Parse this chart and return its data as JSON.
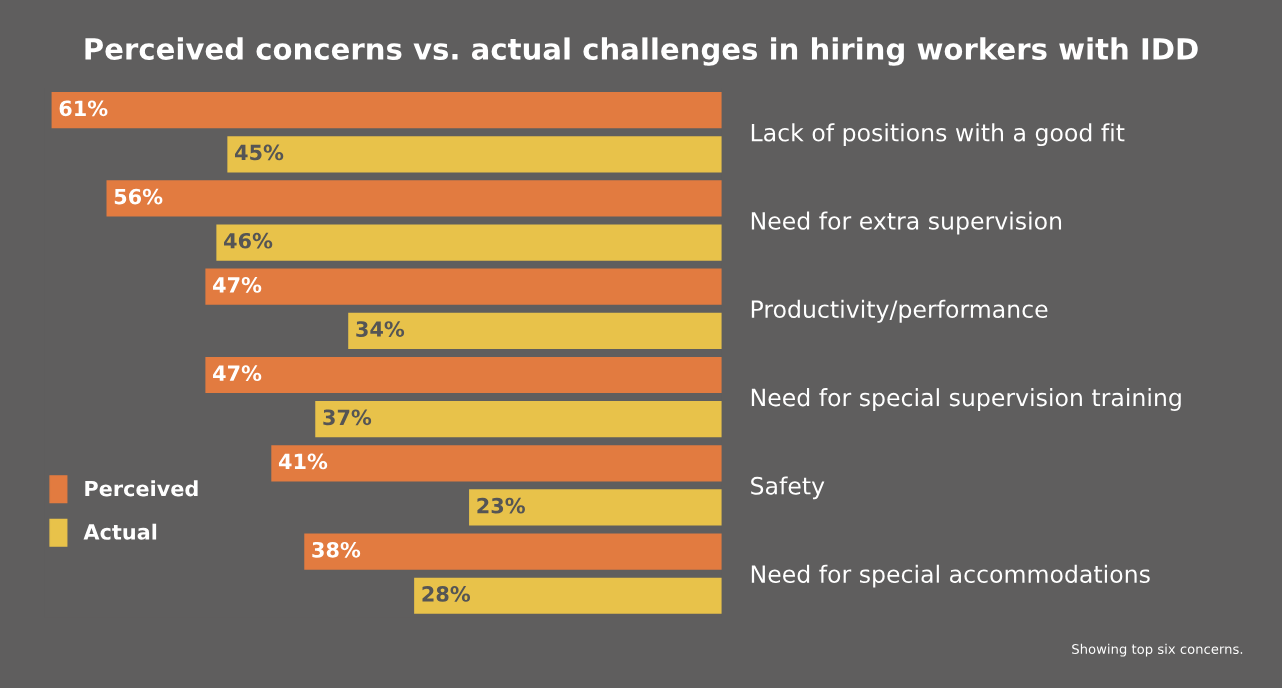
{
  "chart_data": {
    "type": "bar",
    "orientation": "horizontal",
    "title": "Perceived concerns vs. actual challenges in hiring workers with IDD",
    "categories": [
      "Lack of positions with a good fit",
      "Need for extra supervision",
      "Productivity/performance",
      "Need for special supervision training",
      "Safety",
      "Need for special accommodations"
    ],
    "series": [
      {
        "name": "Perceived",
        "color": "#e27b40",
        "values": [
          61,
          56,
          47,
          47,
          41,
          38
        ],
        "value_labels": [
          "61%",
          "56%",
          "47%",
          "47%",
          "41%",
          "38%"
        ]
      },
      {
        "name": "Actual",
        "color": "#e8c24a",
        "values": [
          45,
          46,
          34,
          37,
          23,
          28
        ],
        "value_labels": [
          "45%",
          "46%",
          "34%",
          "37%",
          "23%",
          "28%"
        ]
      }
    ],
    "legend": "bottom left",
    "annotations": [
      "Showing top six concerns."
    ]
  }
}
